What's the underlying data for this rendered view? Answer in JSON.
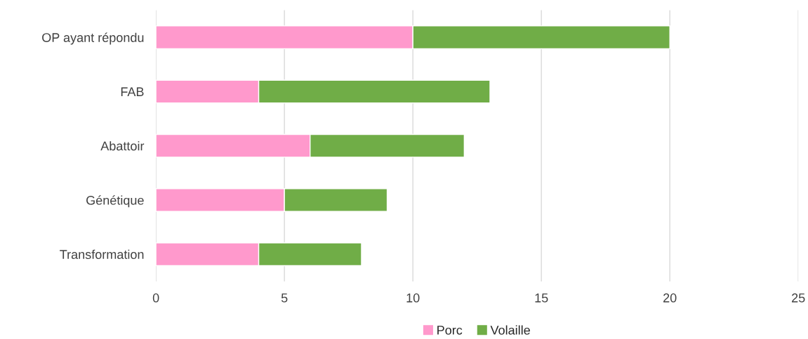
{
  "chart_data": {
    "type": "bar",
    "orientation": "horizontal",
    "stacked": true,
    "categories": [
      "OP ayant répondu",
      "FAB",
      "Abattoir",
      "Génétique",
      "Transformation"
    ],
    "series": [
      {
        "name": "Porc",
        "color": "#ff99cc",
        "values": [
          10,
          4,
          6,
          5,
          4
        ]
      },
      {
        "name": "Volaille",
        "color": "#70ad47",
        "values": [
          10,
          9,
          6,
          4,
          4
        ]
      }
    ],
    "xlim": [
      0,
      25
    ],
    "xticks": [
      0,
      5,
      10,
      15,
      20,
      25
    ],
    "grid": "x",
    "legend": "bottom"
  }
}
